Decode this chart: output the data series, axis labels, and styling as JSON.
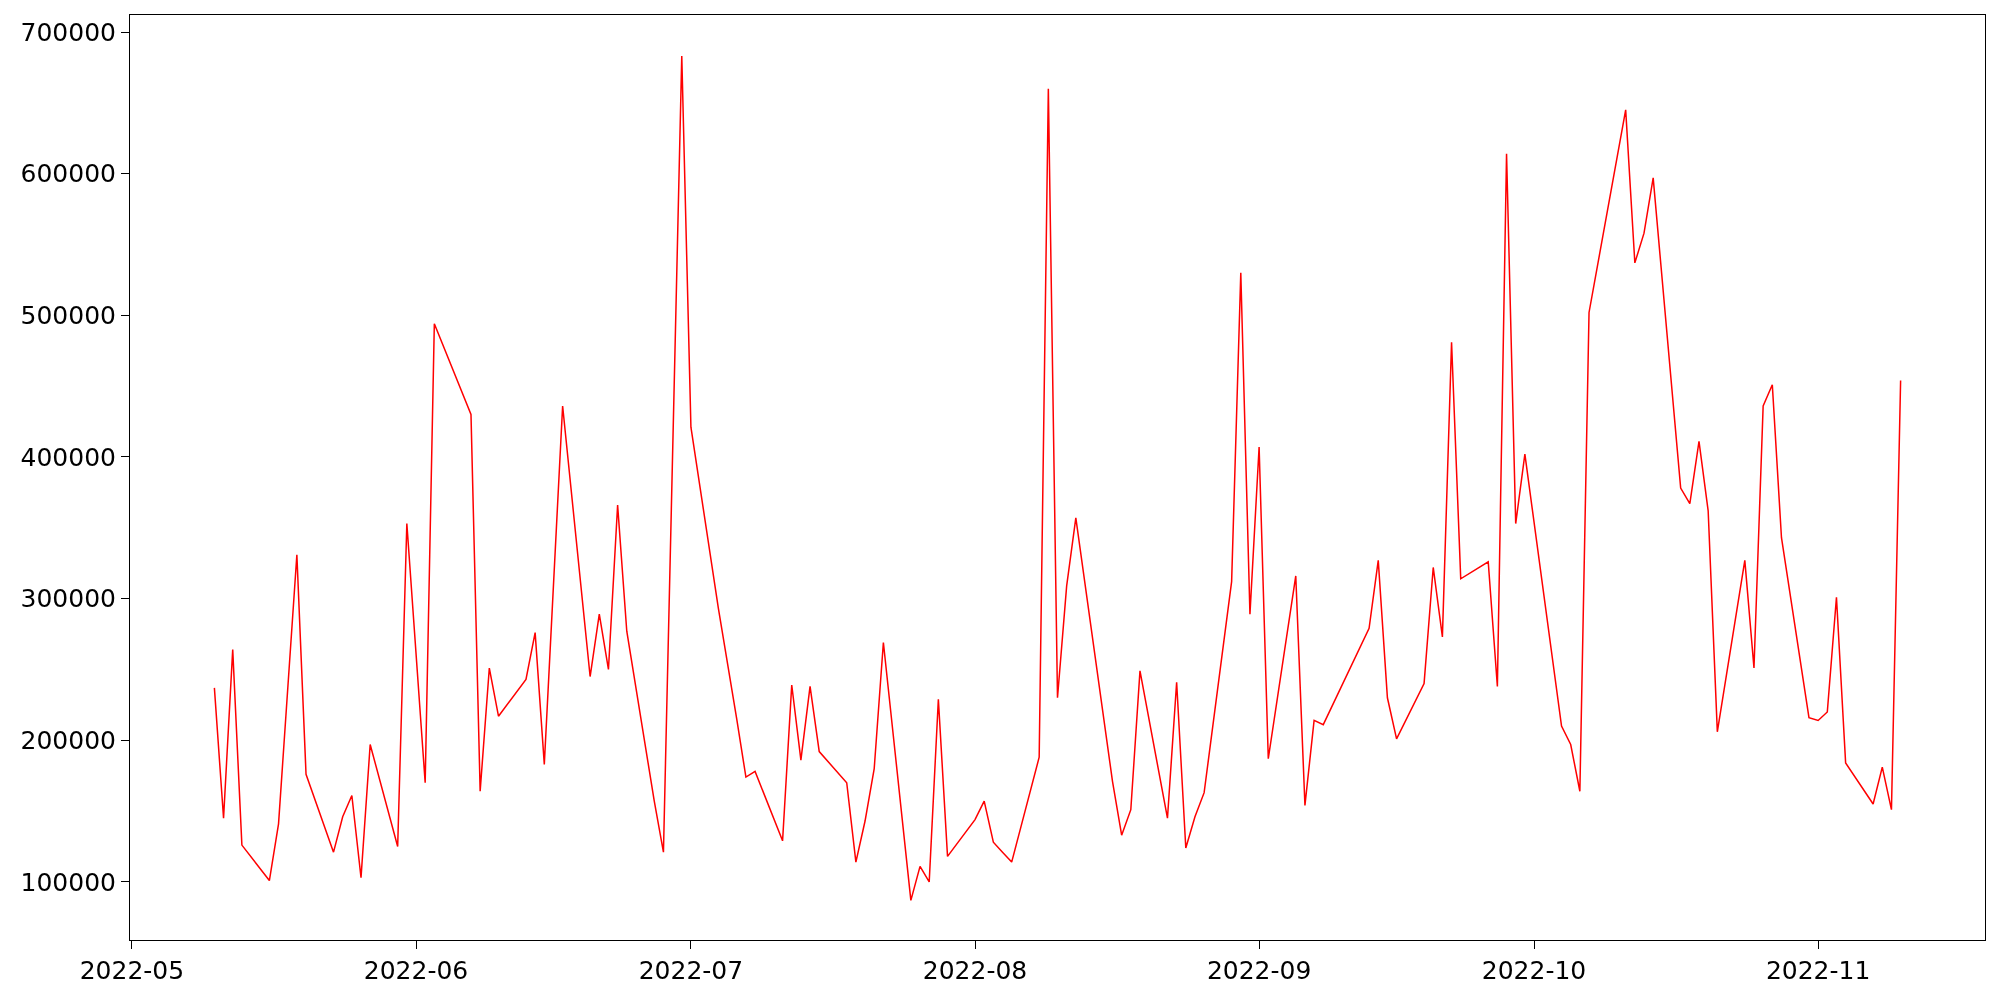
{
  "chart_data": {
    "type": "line",
    "x": [
      "2022-05-10",
      "2022-05-11",
      "2022-05-12",
      "2022-05-13",
      "2022-05-16",
      "2022-05-17",
      "2022-05-19",
      "2022-05-20",
      "2022-05-23",
      "2022-05-24",
      "2022-05-25",
      "2022-05-26",
      "2022-05-27",
      "2022-05-30",
      "2022-05-31",
      "2022-06-02",
      "2022-06-03",
      "2022-06-07",
      "2022-06-08",
      "2022-06-09",
      "2022-06-10",
      "2022-06-13",
      "2022-06-14",
      "2022-06-15",
      "2022-06-17",
      "2022-06-20",
      "2022-06-21",
      "2022-06-22",
      "2022-06-23",
      "2022-06-24",
      "2022-06-27",
      "2022-06-28",
      "2022-06-30",
      "2022-07-01",
      "2022-07-04",
      "2022-07-06",
      "2022-07-07",
      "2022-07-08",
      "2022-07-11",
      "2022-07-12",
      "2022-07-13",
      "2022-07-14",
      "2022-07-15",
      "2022-07-18",
      "2022-07-19",
      "2022-07-20",
      "2022-07-21",
      "2022-07-22",
      "2022-07-25",
      "2022-07-26",
      "2022-07-27",
      "2022-07-28",
      "2022-07-29",
      "2022-08-01",
      "2022-08-02",
      "2022-08-03",
      "2022-08-04",
      "2022-08-05",
      "2022-08-08",
      "2022-08-09",
      "2022-08-10",
      "2022-08-11",
      "2022-08-12",
      "2022-08-16",
      "2022-08-17",
      "2022-08-18",
      "2022-08-19",
      "2022-08-22",
      "2022-08-23",
      "2022-08-24",
      "2022-08-25",
      "2022-08-26",
      "2022-08-29",
      "2022-08-30",
      "2022-08-31",
      "2022-09-01",
      "2022-09-02",
      "2022-09-05",
      "2022-09-06",
      "2022-09-07",
      "2022-09-08",
      "2022-09-13",
      "2022-09-14",
      "2022-09-15",
      "2022-09-16",
      "2022-09-19",
      "2022-09-20",
      "2022-09-21",
      "2022-09-22",
      "2022-09-23",
      "2022-09-26",
      "2022-09-27",
      "2022-09-28",
      "2022-09-29",
      "2022-09-30",
      "2022-10-04",
      "2022-10-05",
      "2022-10-06",
      "2022-10-07",
      "2022-10-11",
      "2022-10-12",
      "2022-10-13",
      "2022-10-14",
      "2022-10-17",
      "2022-10-18",
      "2022-10-19",
      "2022-10-20",
      "2022-10-21",
      "2022-10-24",
      "2022-10-25",
      "2022-10-26",
      "2022-10-27",
      "2022-10-28",
      "2022-10-31",
      "2022-11-01",
      "2022-11-02",
      "2022-11-03",
      "2022-11-04",
      "2022-11-07",
      "2022-11-08",
      "2022-11-09",
      "2022-11-10"
    ],
    "series": [
      {
        "color": "#ff0000",
        "values": [
          237000,
          145000,
          264000,
          126000,
          101000,
          141000,
          331000,
          176000,
          121000,
          146000,
          161000,
          103000,
          197000,
          125000,
          353000,
          170000,
          494000,
          430000,
          164000,
          251000,
          217000,
          243000,
          276000,
          183000,
          436000,
          245000,
          289000,
          250000,
          366000,
          277000,
          157000,
          121000,
          683000,
          421000,
          293000,
          215000,
          174000,
          178000,
          129000,
          239000,
          186000,
          238000,
          192000,
          170000,
          114000,
          143000,
          180000,
          269000,
          87000,
          111000,
          100000,
          229000,
          118000,
          144000,
          157000,
          128000,
          121000,
          114000,
          188000,
          660000,
          230000,
          309000,
          357000,
          171000,
          133000,
          151000,
          249000,
          145000,
          241000,
          124000,
          146000,
          163000,
          312000,
          530000,
          289000,
          407000,
          187000,
          316000,
          154000,
          214000,
          211000,
          279000,
          327000,
          230000,
          201000,
          240000,
          322000,
          273000,
          481000,
          314000,
          326000,
          238000,
          614000,
          353000,
          402000,
          210000,
          197000,
          164000,
          502000,
          645000,
          537000,
          558000,
          597000,
          378000,
          367000,
          411000,
          362000,
          206000,
          327000,
          251000,
          436000,
          451000,
          343000,
          216000,
          214000,
          220000,
          301000,
          184000,
          155000,
          181000,
          151000,
          454000
        ]
      }
    ],
    "xlim": [
      "2022-04-30T19:00",
      "2022-11-19T05:00"
    ],
    "xticks": [
      {
        "value": "2022-05-01",
        "label": "2022-05"
      },
      {
        "value": "2022-06-01",
        "label": "2022-06"
      },
      {
        "value": "2022-07-01",
        "label": "2022-07"
      },
      {
        "value": "2022-08-01",
        "label": "2022-08"
      },
      {
        "value": "2022-09-01",
        "label": "2022-09"
      },
      {
        "value": "2022-10-01",
        "label": "2022-10"
      },
      {
        "value": "2022-11-01",
        "label": "2022-11"
      }
    ],
    "ylim": [
      59000,
      712000
    ],
    "yticks": [
      100000,
      200000,
      300000,
      400000,
      500000,
      600000,
      700000
    ],
    "marker": "none",
    "line_style": "solid"
  }
}
